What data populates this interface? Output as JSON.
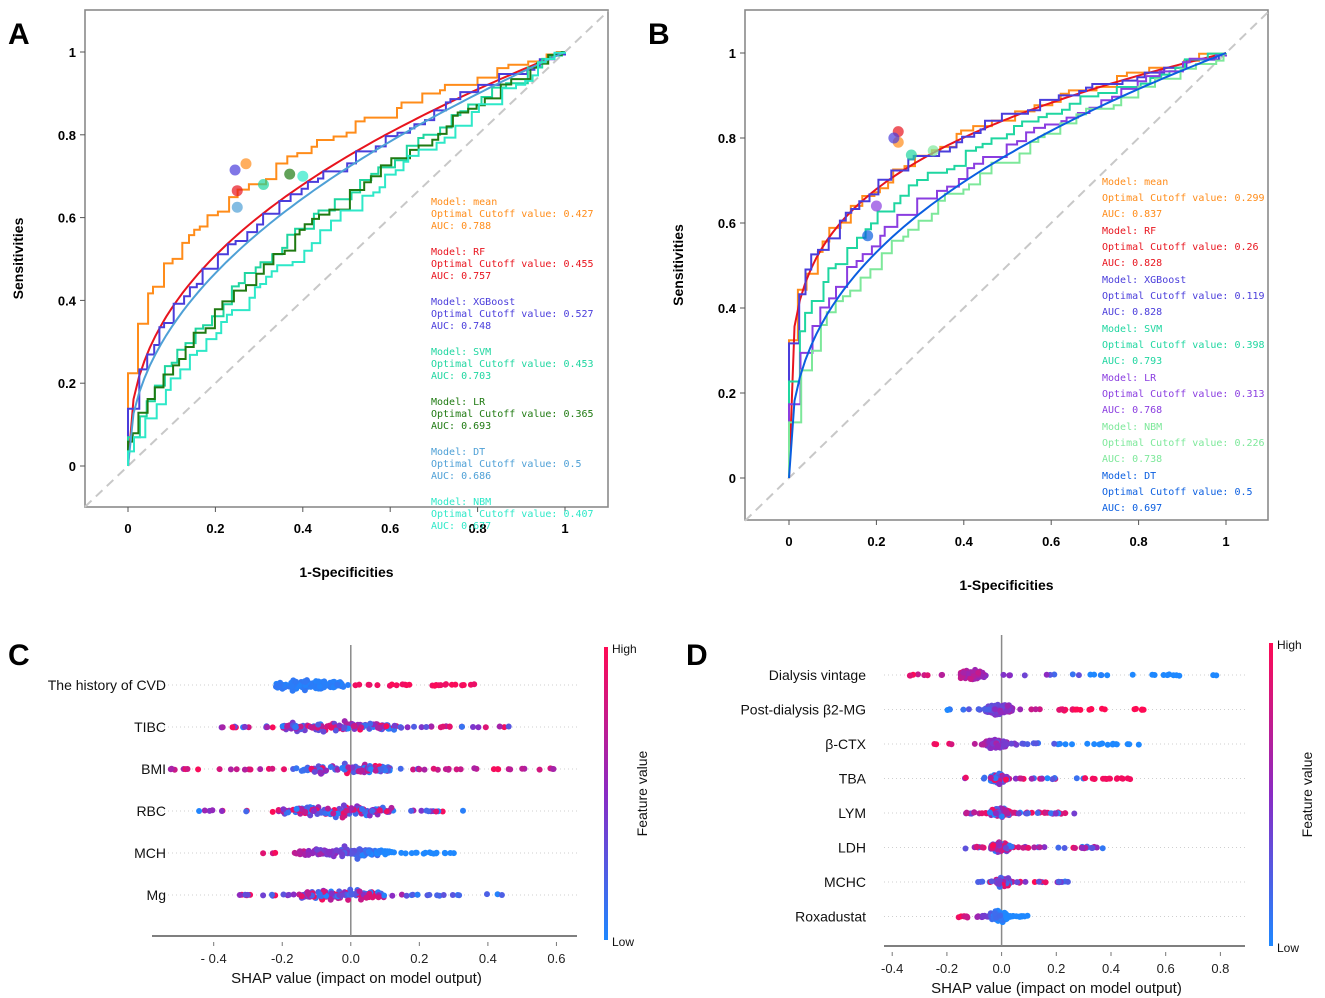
{
  "chart_data": [
    {
      "panel": "A",
      "type": "line",
      "title": "",
      "xlabel": "1-Specificities",
      "ylabel": "Sensitivities",
      "xlim": [
        0,
        1
      ],
      "ylim": [
        0,
        1
      ],
      "xticks": [
        "0",
        "0.2",
        "0.4",
        "0.6",
        "0.8",
        "1"
      ],
      "yticks": [
        "0",
        "0.2",
        "0.4",
        "0.6",
        "0.8",
        "1"
      ],
      "reference_line": "diagonal-dashed",
      "legend_position": "right",
      "series": [
        {
          "name": "mean",
          "color": "#ff8c1a",
          "cutoff": "0.427",
          "auc": "0.788",
          "cutoff_point": [
            0.27,
            0.73
          ],
          "shape": 0.55,
          "step": true,
          "legend": [
            "Model: mean",
            "Optimal Cutoff value: 0.427",
            "AUC: 0.788"
          ]
        },
        {
          "name": "RF",
          "color": "#e8141e",
          "cutoff": "0.455",
          "auc": "0.757",
          "cutoff_point": [
            0.25,
            0.665
          ],
          "shape": 0.75,
          "step": false,
          "legend": [
            "Model: RF",
            "Optimal Cutoff value: 0.455",
            "AUC: 0.757"
          ]
        },
        {
          "name": "XGBoost",
          "color": "#4a3ddb",
          "cutoff": "0.527",
          "auc": "0.748",
          "cutoff_point": [
            0.245,
            0.715
          ],
          "shape": 0.8,
          "step": true,
          "legend": [
            "Model: XGBoost",
            "Optimal Cutoff value: 0.527",
            "AUC: 0.748"
          ]
        },
        {
          "name": "SVM",
          "color": "#1fd6a0",
          "cutoff": "0.453",
          "auc": "0.703",
          "cutoff_point": [
            0.31,
            0.68
          ],
          "shape": 1.1,
          "step": true,
          "legend": [
            "Model: SVM",
            "Optimal Cutoff value: 0.453",
            "AUC: 0.703"
          ]
        },
        {
          "name": "LR",
          "color": "#1f7a12",
          "cutoff": "0.365",
          "auc": "0.693",
          "cutoff_point": [
            0.37,
            0.705
          ],
          "shape": 1.15,
          "step": true,
          "legend": [
            "Model: LR",
            "Optimal Cutoff value: 0.365",
            "AUC: 0.693"
          ]
        },
        {
          "name": "DT",
          "color": "#4ea0d6",
          "cutoff": "0.5",
          "auc": "0.686",
          "cutoff_point": [
            0.25,
            0.625
          ],
          "shape": 0.85,
          "step": false,
          "legend": [
            "Model: DT",
            "Optimal Cutoff value: 0.5",
            "AUC: 0.686"
          ]
        },
        {
          "name": "NBM",
          "color": "#2ee8c8",
          "cutoff": "0.407",
          "auc": "0.677",
          "cutoff_point": [
            0.4,
            0.7
          ],
          "shape": 1.3,
          "step": true,
          "legend": [
            "Model: NBM",
            "Optimal Cutoff value: 0.407",
            "AUC: 0.677"
          ]
        }
      ]
    },
    {
      "panel": "B",
      "type": "line",
      "title": "",
      "xlabel": "1-Specificities",
      "ylabel": "Sensitivities",
      "xlim": [
        0,
        1
      ],
      "ylim": [
        0,
        1
      ],
      "xticks": [
        "0",
        "0.2",
        "0.4",
        "0.6",
        "0.8",
        "1"
      ],
      "yticks": [
        "0",
        "0.2",
        "0.4",
        "0.6",
        "0.8",
        "1"
      ],
      "reference_line": "diagonal-dashed",
      "legend_position": "right",
      "series": [
        {
          "name": "mean",
          "color": "#ff8c1a",
          "cutoff": "0.299",
          "auc": "0.837",
          "cutoff_point": [
            0.25,
            0.79
          ],
          "shape": 0.42,
          "step": true,
          "legend": [
            "Model: mean",
            "Optimal Cutoff value: 0.299",
            "AUC: 0.837"
          ]
        },
        {
          "name": "RF",
          "color": "#e8141e",
          "cutoff": "0.26",
          "auc": "0.828",
          "cutoff_point": [
            0.25,
            0.815
          ],
          "shape": 0.42,
          "step": false,
          "legend": [
            "Model: RF",
            "Optimal Cutoff value: 0.26",
            "AUC: 0.828"
          ]
        },
        {
          "name": "XGBoost",
          "color": "#4a3ddb",
          "cutoff": "0.119",
          "auc": "0.828",
          "cutoff_point": [
            0.24,
            0.8
          ],
          "shape": 0.42,
          "step": true,
          "legend": [
            "Model: XGBoost",
            "Optimal Cutoff value: 0.119",
            "AUC: 0.828"
          ]
        },
        {
          "name": "SVM",
          "color": "#1fd6a0",
          "cutoff": "0.398",
          "auc": "0.793",
          "cutoff_point": [
            0.28,
            0.76
          ],
          "shape": 0.55,
          "step": true,
          "legend": [
            "Model: SVM",
            "Optimal Cutoff value: 0.398",
            "AUC: 0.793"
          ]
        },
        {
          "name": "LR",
          "color": "#8a3de0",
          "cutoff": "0.313",
          "auc": "0.768",
          "cutoff_point": [
            0.2,
            0.64
          ],
          "shape": 0.65,
          "step": true,
          "legend": [
            "Model: LR",
            "Optimal Cutoff value: 0.313",
            "AUC: 0.768"
          ]
        },
        {
          "name": "NBM",
          "color": "#7de89a",
          "cutoff": "0.226",
          "auc": "0.738",
          "cutoff_point": [
            0.33,
            0.77
          ],
          "shape": 0.75,
          "step": true,
          "legend": [
            "Model: NBM",
            "Optimal Cutoff value: 0.226",
            "AUC: 0.738"
          ]
        },
        {
          "name": "DT",
          "color": "#0a5ee0",
          "cutoff": "0.5",
          "auc": "0.697",
          "cutoff_point": [
            0.18,
            0.57
          ],
          "shape": 0.7,
          "step": false,
          "legend": [
            "Model: DT",
            "Optimal Cutoff value: 0.5",
            "AUC: 0.697"
          ]
        }
      ]
    },
    {
      "panel": "C",
      "type": "scatter",
      "subtype": "shap-beeswarm",
      "xlabel": "SHAP value (impact on model output)",
      "xlim": [
        -0.58,
        0.66
      ],
      "xticks": [
        -0.4,
        -0.2,
        0.0,
        0.2,
        0.4,
        0.6
      ],
      "xtick_labels": [
        "- 0.4",
        "-0.2",
        "0.0",
        "0.2",
        "0.4",
        "0.6"
      ],
      "colorbar": {
        "title": "Feature value",
        "high": "High",
        "low": "Low",
        "high_color": "#ff0a54",
        "low_color": "#1e88ff"
      },
      "features": [
        {
          "name": "The history of CVD",
          "min": -0.25,
          "max": 0.44,
          "core": [
            -0.22,
            -0.02
          ],
          "pattern": "bimodal-blue-left-red-right"
        },
        {
          "name": "TIBC",
          "min": -0.41,
          "max": 0.47,
          "core": [
            -0.2,
            0.15
          ],
          "pattern": "mixed"
        },
        {
          "name": "BMI",
          "min": -0.53,
          "max": 0.6,
          "core": [
            -0.15,
            0.12
          ],
          "pattern": "mixed-red-tails"
        },
        {
          "name": "RBC",
          "min": -0.46,
          "max": 0.33,
          "core": [
            -0.2,
            0.12
          ],
          "pattern": "mixed"
        },
        {
          "name": "MCH",
          "min": -0.27,
          "max": 0.31,
          "core": [
            -0.15,
            0.12
          ],
          "pattern": "red-left-blue-right"
        },
        {
          "name": "Mg",
          "min": -0.36,
          "max": 0.45,
          "core": [
            -0.15,
            0.1
          ],
          "pattern": "mixed-blue-right"
        }
      ]
    },
    {
      "panel": "D",
      "type": "scatter",
      "subtype": "shap-beeswarm",
      "xlabel": "SHAP value (impact on model output)",
      "xlim": [
        -0.43,
        0.89
      ],
      "xticks": [
        -0.4,
        -0.2,
        0.0,
        0.2,
        0.4,
        0.6,
        0.8
      ],
      "xtick_labels": [
        "-0.4",
        "-0.2",
        "0.0",
        "0.2",
        "0.4",
        "0.6",
        "0.8"
      ],
      "colorbar": {
        "title": "Feature value",
        "high": "High",
        "low": "Low",
        "high_color": "#ff0a54",
        "low_color": "#1e88ff"
      },
      "features": [
        {
          "name": "Dialysis  vintage",
          "min": -0.4,
          "max": 0.83,
          "core": [
            -0.15,
            -0.06
          ],
          "pattern": "red-left-blue-right"
        },
        {
          "name": "Post-dialysis β2-MG",
          "min": -0.2,
          "max": 0.52,
          "core": [
            -0.06,
            0.04
          ],
          "pattern": "blue-left-red-right"
        },
        {
          "name": "β-CTX",
          "min": -0.25,
          "max": 0.52,
          "core": [
            -0.06,
            0.02
          ],
          "pattern": "red-left-blue-right"
        },
        {
          "name": "TBA",
          "min": -0.14,
          "max": 0.52,
          "core": [
            -0.04,
            0.02
          ],
          "pattern": "mixed-red-outliers"
        },
        {
          "name": "LYM",
          "min": -0.14,
          "max": 0.27,
          "core": [
            -0.04,
            0.03
          ],
          "pattern": "mixed"
        },
        {
          "name": "LDH",
          "min": -0.14,
          "max": 0.37,
          "core": [
            -0.04,
            0.03
          ],
          "pattern": "mixed"
        },
        {
          "name": "MCHC",
          "min": -0.09,
          "max": 0.28,
          "core": [
            -0.02,
            0.03
          ],
          "pattern": "mixed"
        },
        {
          "name": "Roxadustat",
          "min": -0.17,
          "max": 0.1,
          "core": [
            -0.04,
            0.02
          ],
          "pattern": "red-left-blue-right"
        }
      ]
    }
  ],
  "labels": {
    "panel_a": "A",
    "panel_b": "B",
    "panel_c": "C",
    "panel_d": "D"
  }
}
